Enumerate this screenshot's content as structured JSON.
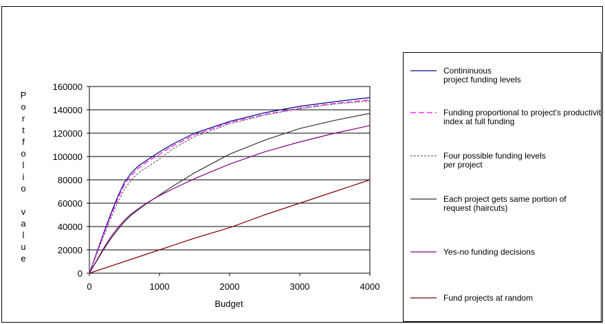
{
  "chart_data": {
    "type": "line",
    "title": "",
    "xlabel": "Budget",
    "ylabel": "Portfolio value",
    "xlim": [
      0,
      4000
    ],
    "ylim": [
      0,
      160000
    ],
    "x_ticks": [
      "0",
      "1000",
      "2000",
      "3000",
      "4000"
    ],
    "y_ticks": [
      "0",
      "20000",
      "40000",
      "60000",
      "80000",
      "100000",
      "120000",
      "140000",
      "160000"
    ],
    "grid": "horizontal",
    "legend_position": "right",
    "series": [
      {
        "name": "Contininuous project funding levels",
        "color": "#000080",
        "dash": "solid",
        "x": [
          0,
          100,
          200,
          300,
          400,
          500,
          600,
          700,
          800,
          1000,
          1200,
          1500,
          2000,
          2500,
          3000,
          3500,
          4000
        ],
        "y": [
          0,
          17000,
          34000,
          50000,
          65000,
          78000,
          86000,
          92000,
          96000,
          104000,
          111000,
          120000,
          130000,
          137500,
          143000,
          147000,
          150500
        ]
      },
      {
        "name": "Funding proportional to project's productivity index at full funding",
        "color": "#FF00FF",
        "dash": "dashed",
        "x": [
          0,
          100,
          200,
          300,
          400,
          500,
          600,
          700,
          800,
          1000,
          1200,
          1500,
          2000,
          2500,
          3000,
          3500,
          4000
        ],
        "y": [
          0,
          16500,
          33000,
          48500,
          63000,
          76000,
          84000,
          90000,
          94500,
          102000,
          109500,
          118500,
          129000,
          136000,
          141500,
          145500,
          148500
        ]
      },
      {
        "name": "Four possible funding levels per project",
        "color": "#666666",
        "dash": "dotted",
        "x": [
          0,
          100,
          200,
          300,
          400,
          500,
          600,
          700,
          800,
          1000,
          1200,
          1500,
          2000,
          2500,
          3000,
          3500,
          4000
        ],
        "y": [
          0,
          15500,
          31000,
          46000,
          60000,
          72000,
          80000,
          86000,
          90000,
          98000,
          107000,
          117000,
          128000,
          135500,
          141000,
          145000,
          147500
        ]
      },
      {
        "name": "Each project gets same portion of request (haircuts)",
        "color": "#333333",
        "dash": "solid",
        "x": [
          0,
          100,
          200,
          300,
          400,
          500,
          600,
          800,
          1000,
          1200,
          1500,
          2000,
          2500,
          3000,
          3500,
          4000
        ],
        "y": [
          0,
          10000,
          20000,
          29000,
          37000,
          44000,
          50000,
          59000,
          67000,
          75000,
          86000,
          102000,
          114000,
          124000,
          131000,
          137000
        ]
      },
      {
        "name": "Yes-no funding decisions",
        "color": "#800080",
        "dash": "solid",
        "x": [
          0,
          100,
          200,
          300,
          400,
          500,
          600,
          800,
          1000,
          1200,
          1500,
          2000,
          2500,
          3000,
          3500,
          4000
        ],
        "y": [
          0,
          10500,
          21000,
          30500,
          38500,
          45500,
          51000,
          59500,
          66500,
          72500,
          81000,
          93500,
          104000,
          112500,
          120000,
          126500
        ]
      },
      {
        "name": "Fund projects at random",
        "color": "#800000",
        "dash": "solid",
        "x": [
          0,
          500,
          1000,
          1500,
          2000,
          2500,
          3000,
          3500,
          4000
        ],
        "y": [
          0,
          10000,
          20000,
          30000,
          39000,
          50000,
          60000,
          70000,
          80000
        ]
      }
    ]
  }
}
